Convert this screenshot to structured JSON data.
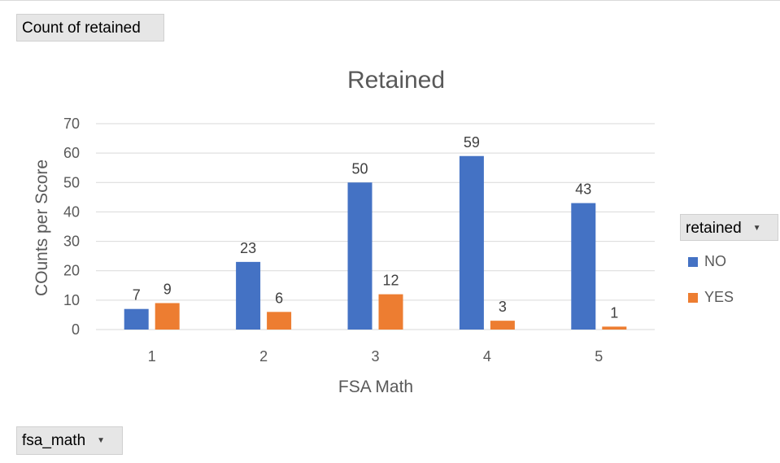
{
  "pivot": {
    "value_field": "Count of retained",
    "axis_field": "fsa_math",
    "legend_field": "retained",
    "dropdown_icon": "dropdown-arrow-icon"
  },
  "colors": {
    "NO": "#4472c4",
    "YES": "#ed7d31",
    "grid": "#d9d9d9",
    "text": "#595959"
  },
  "chart_data": {
    "type": "bar",
    "title": "Retained",
    "xlabel": "FSA Math",
    "ylabel": "COunts per Score",
    "categories": [
      "1",
      "2",
      "3",
      "4",
      "5"
    ],
    "series": [
      {
        "name": "NO",
        "values": [
          7,
          23,
          50,
          59,
          43
        ]
      },
      {
        "name": "YES",
        "values": [
          9,
          6,
          12,
          3,
          1
        ]
      }
    ],
    "ylim": [
      0,
      70
    ],
    "yticks": [
      0,
      10,
      20,
      30,
      40,
      50,
      60,
      70
    ],
    "grid": true,
    "legend": "right",
    "data_labels": true
  }
}
